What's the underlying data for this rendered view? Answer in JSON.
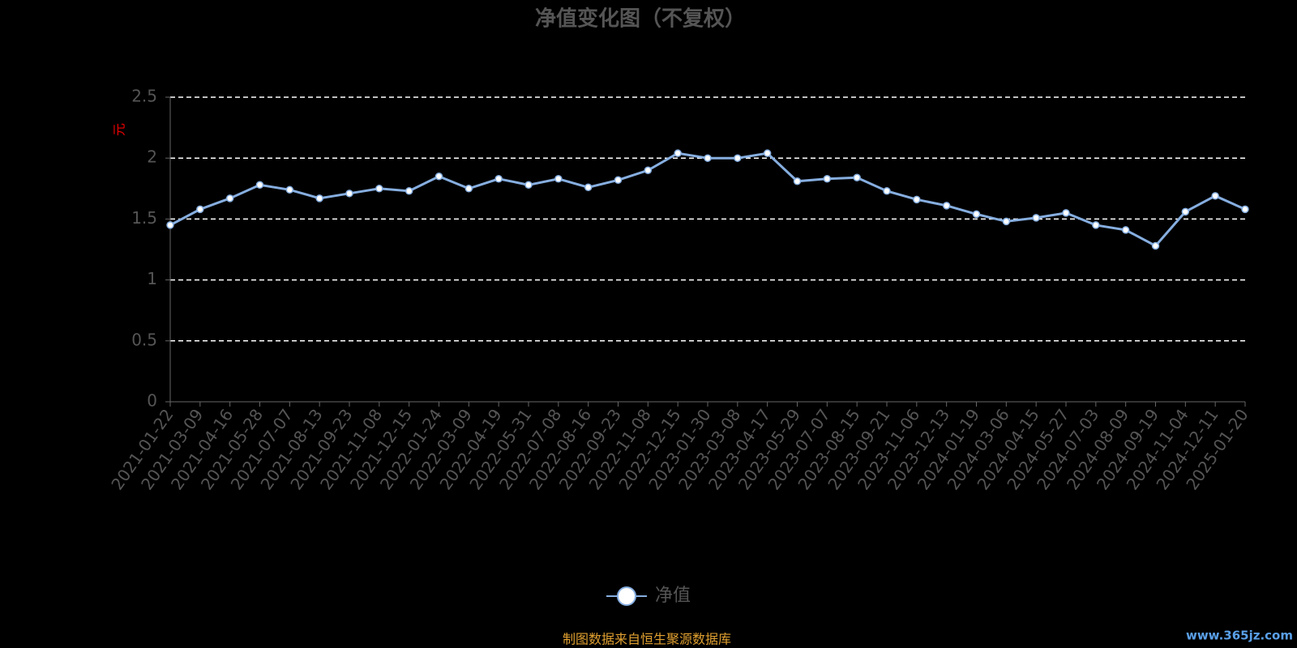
{
  "chart_data": {
    "type": "line",
    "title": "净值变化图（不复权）",
    "y_label": "元",
    "categories": [
      "2021-01-22",
      "2021-03-09",
      "2021-04-16",
      "2021-05-28",
      "2021-07-07",
      "2021-08-13",
      "2021-09-23",
      "2021-11-08",
      "2021-12-15",
      "2022-01-24",
      "2022-03-09",
      "2022-04-19",
      "2022-05-31",
      "2022-07-08",
      "2022-08-16",
      "2022-09-23",
      "2022-11-08",
      "2022-12-15",
      "2023-01-30",
      "2023-03-08",
      "2023-04-17",
      "2023-05-29",
      "2023-07-07",
      "2023-08-15",
      "2023-09-21",
      "2023-11-06",
      "2023-12-13",
      "2024-01-19",
      "2024-03-06",
      "2024-04-15",
      "2024-05-27",
      "2024-07-03",
      "2024-08-09",
      "2024-09-19",
      "2024-11-04",
      "2024-12-11",
      "2025-01-20"
    ],
    "series": [
      {
        "name": "净值",
        "color": "#86aee0",
        "values": [
          1.45,
          1.58,
          1.67,
          1.78,
          1.74,
          1.67,
          1.71,
          1.75,
          1.73,
          1.85,
          1.75,
          1.83,
          1.78,
          1.83,
          1.76,
          1.82,
          1.9,
          2.04,
          2.0,
          2.0,
          2.04,
          1.81,
          1.83,
          1.84,
          1.73,
          1.66,
          1.61,
          1.54,
          1.48,
          1.51,
          1.55,
          1.45,
          1.41,
          1.28,
          1.56,
          1.69,
          1.58
        ]
      }
    ],
    "ylim": [
      0,
      2.5
    ],
    "yticks": [
      0,
      0.5,
      1,
      1.5,
      2,
      2.5
    ],
    "grid": true,
    "legend": "bottom",
    "source": "制图数据来自恒生聚源数据库"
  },
  "watermark": "www.365jz.com"
}
